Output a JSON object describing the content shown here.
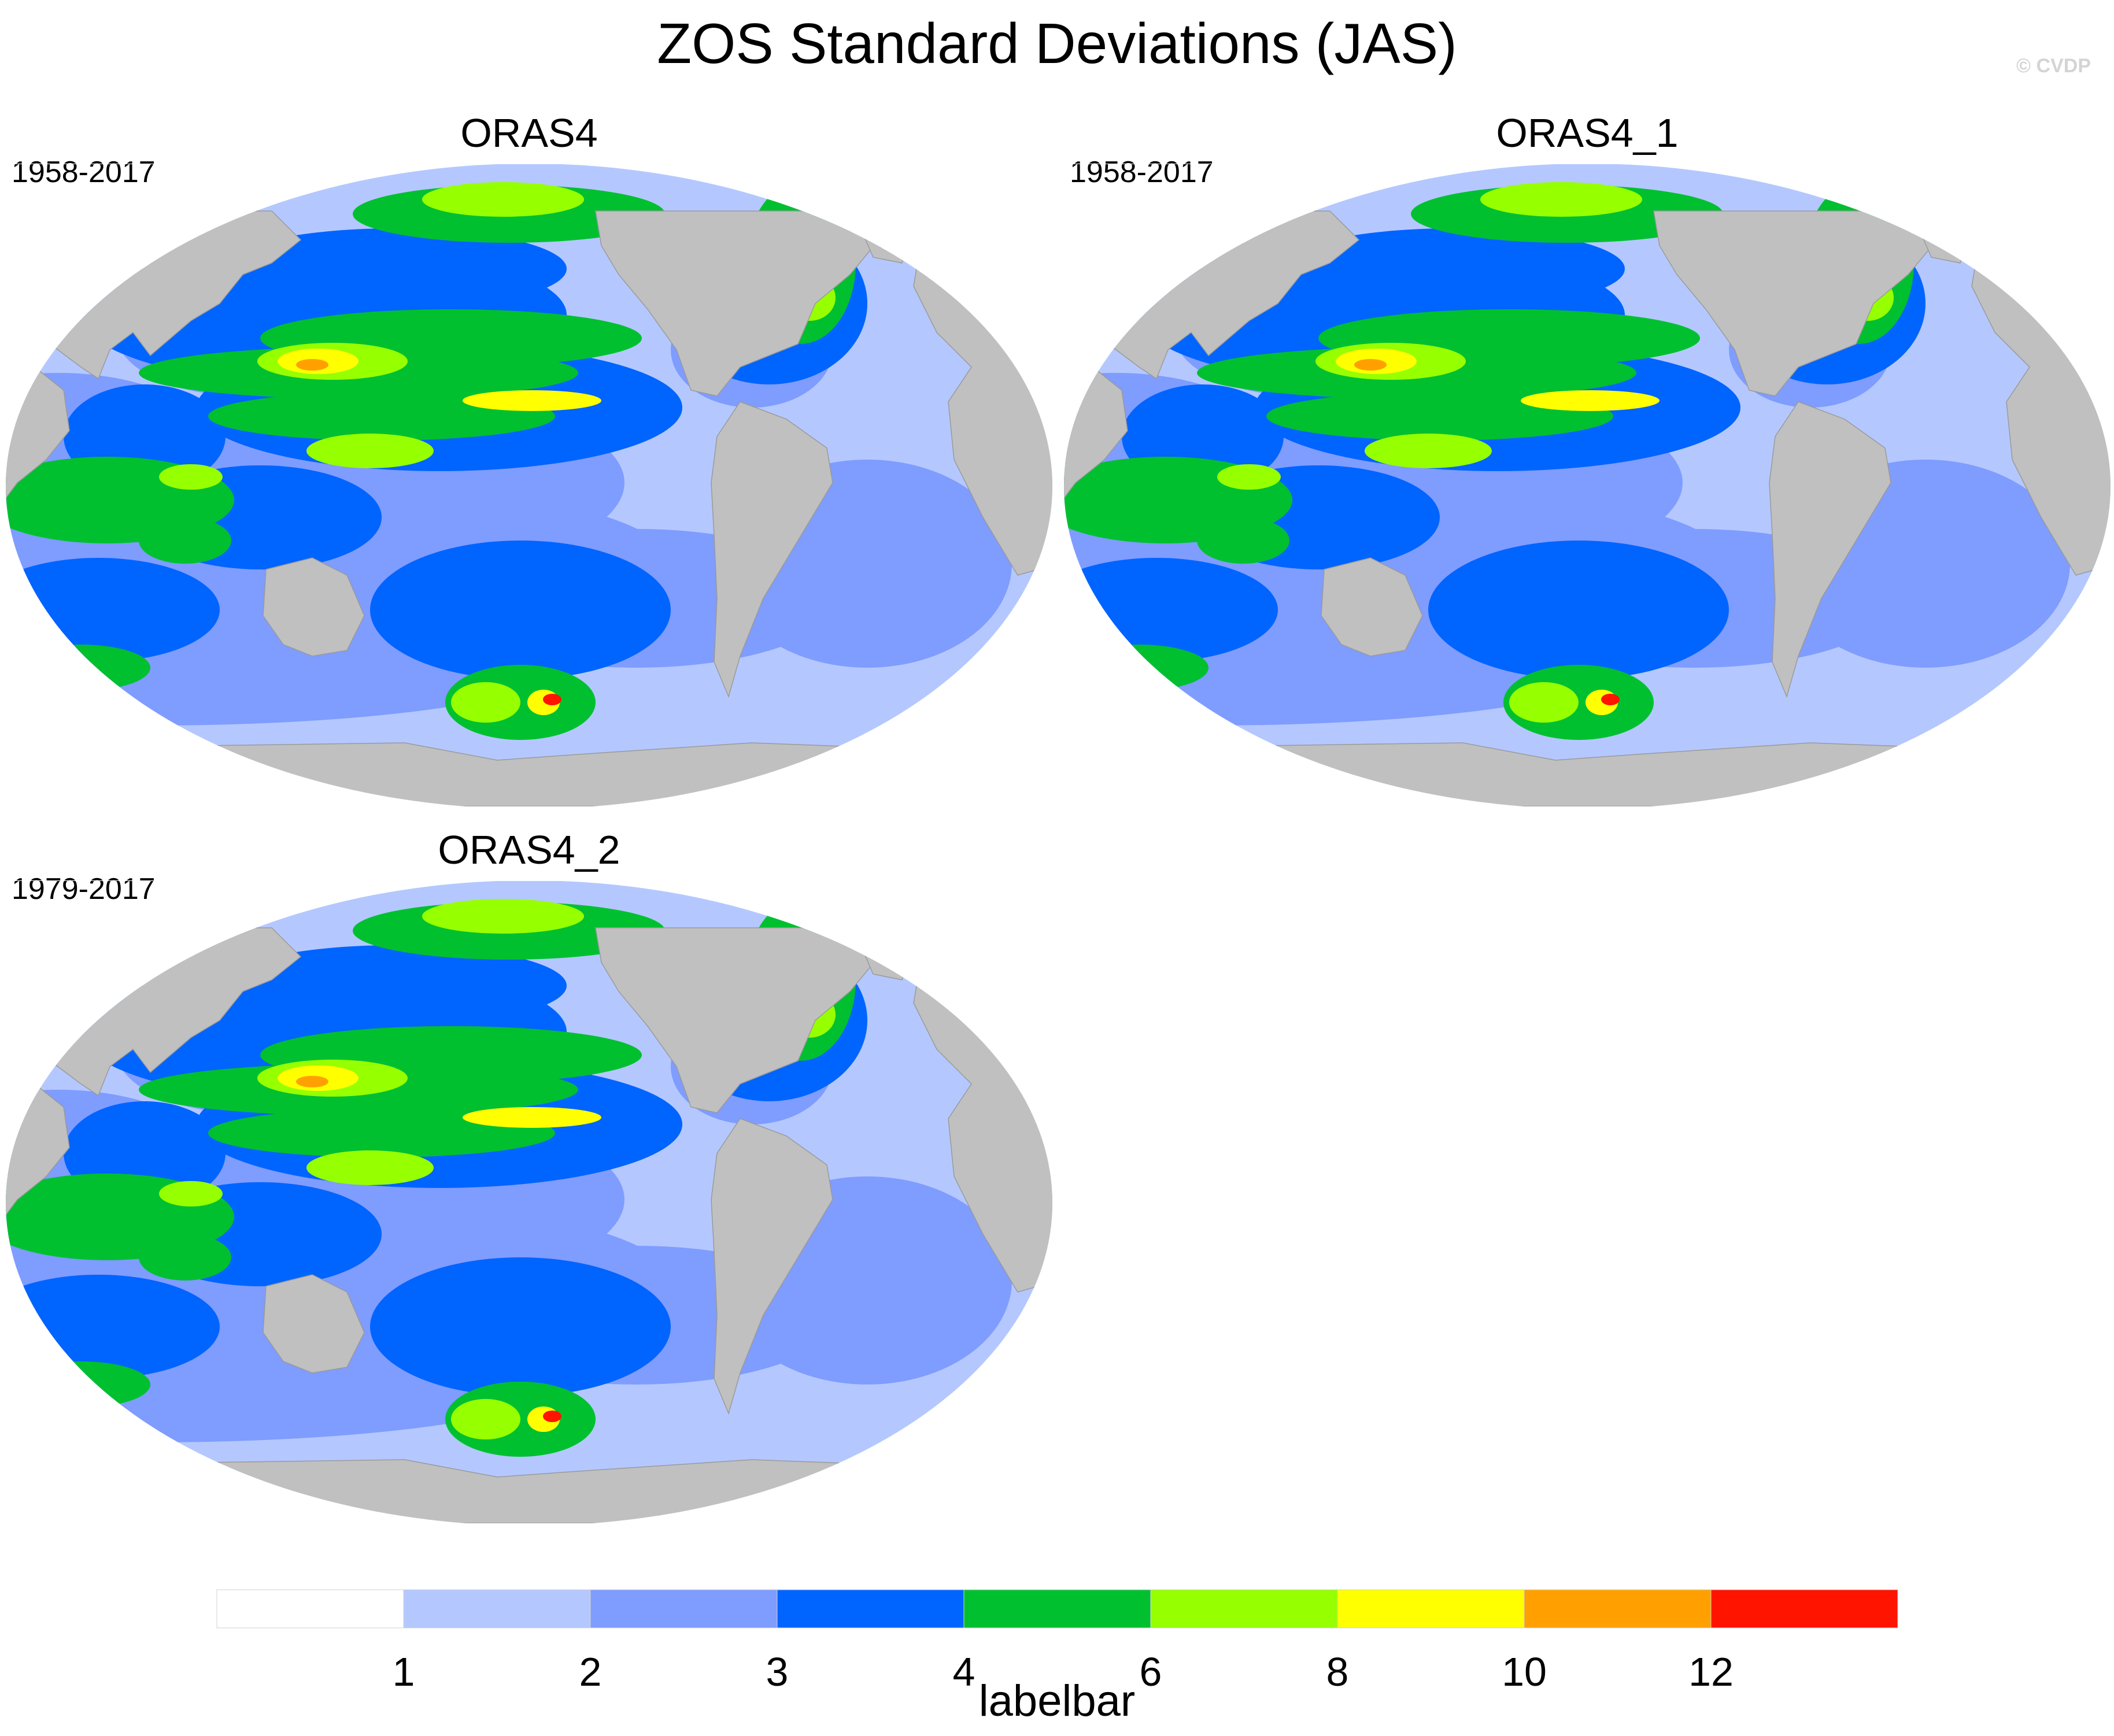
{
  "figure": {
    "title": "ZOS Standard Deviations (JAS)",
    "watermark": "© CVDP"
  },
  "colors": {
    "land": "#c0c0c0",
    "coast": "#ffffff",
    "levels": [
      "#ffffff",
      "#b4c8ff",
      "#7f9cff",
      "#0064ff",
      "#00c030",
      "#96ff00",
      "#ffff00",
      "#ffa000",
      "#ff1400"
    ]
  },
  "panels": [
    {
      "title": "ORAS4",
      "years": "1958-2017"
    },
    {
      "title": "ORAS4_1",
      "years": "1958-2017"
    },
    {
      "title": "ORAS4_2",
      "years": "1979-2017"
    }
  ],
  "labelbar": {
    "title": "labelbar",
    "ticks": [
      "1",
      "2",
      "3",
      "4",
      "6",
      "8",
      "10",
      "12"
    ],
    "bounds": [
      1,
      2,
      3,
      4,
      6,
      8,
      10,
      12
    ],
    "colors": [
      "#ffffff",
      "#b4c8ff",
      "#7f9cff",
      "#0064ff",
      "#00c030",
      "#96ff00",
      "#ffff00",
      "#ffa000",
      "#ff1400"
    ]
  }
}
